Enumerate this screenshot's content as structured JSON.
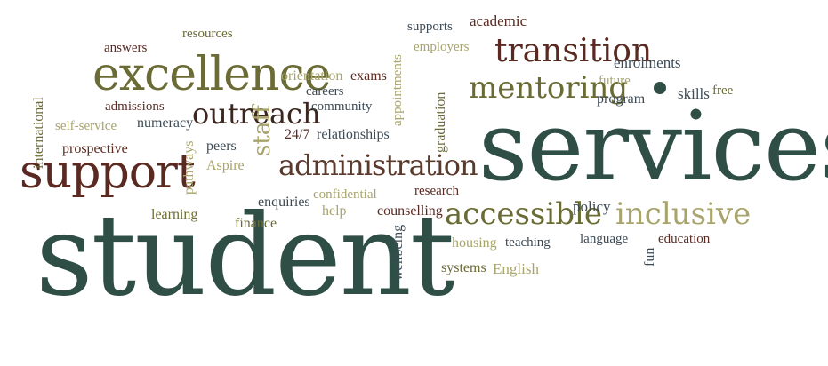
{
  "colors": {
    "dark_green": "#2f4f46",
    "dark_red": "#5a2a22",
    "olive": "#6b6b35",
    "khaki": "#a8a46c",
    "slate": "#3c4a55",
    "brown": "#5b3a2c"
  },
  "words": [
    {
      "text": "student",
      "color": "#2f4f46"
    },
    {
      "text": "services",
      "color": "#2f4f46"
    },
    {
      "text": "excellence",
      "color": "#6b6b35"
    },
    {
      "text": "support",
      "color": "#5a2a22"
    },
    {
      "text": "transition",
      "color": "#5a2a22"
    },
    {
      "text": "mentoring",
      "color": "#6b6b35"
    },
    {
      "text": "outreach",
      "color": "#3c2620"
    },
    {
      "text": "administration",
      "color": "#5b3a2c"
    },
    {
      "text": "accessible",
      "color": "#6b6b35"
    },
    {
      "text": "inclusive",
      "color": "#a8a46c"
    },
    {
      "text": "staff",
      "color": "#a8a46c"
    },
    {
      "text": "resources",
      "color": "#6b6b35"
    },
    {
      "text": "answers",
      "color": "#5a2a22"
    },
    {
      "text": "supports",
      "color": "#3c4a55"
    },
    {
      "text": "academic",
      "color": "#5a2a22"
    },
    {
      "text": "employers",
      "color": "#a8a46c"
    },
    {
      "text": "enrolments",
      "color": "#3c4a55"
    },
    {
      "text": "orientation",
      "color": "#a8a46c"
    },
    {
      "text": "exams",
      "color": "#5a2a22"
    },
    {
      "text": "careers",
      "color": "#3c4a55"
    },
    {
      "text": "community",
      "color": "#3c4a55"
    },
    {
      "text": "future",
      "color": "#a8a46c"
    },
    {
      "text": "program",
      "color": "#3c4a55"
    },
    {
      "text": "skills",
      "color": "#3c4a55"
    },
    {
      "text": "free",
      "color": "#6b6b35"
    },
    {
      "text": "admissions",
      "color": "#5a2a22"
    },
    {
      "text": "self-service",
      "color": "#a8a46c"
    },
    {
      "text": "numeracy",
      "color": "#3c4a55"
    },
    {
      "text": "appointments",
      "color": "#a8a46c"
    },
    {
      "text": "graduation",
      "color": "#6b6b35"
    },
    {
      "text": "international",
      "color": "#6b6b35"
    },
    {
      "text": "prospective",
      "color": "#5a2a22"
    },
    {
      "text": "peers",
      "color": "#3c4a55"
    },
    {
      "text": "24/7",
      "color": "#5a2a22"
    },
    {
      "text": "relationships",
      "color": "#3c4a55"
    },
    {
      "text": "Aspire",
      "color": "#a8a46c"
    },
    {
      "text": "pathways",
      "color": "#a8a46c"
    },
    {
      "text": "confidential",
      "color": "#a8a46c"
    },
    {
      "text": "research",
      "color": "#5a2a22"
    },
    {
      "text": "enquiries",
      "color": "#3c4a55"
    },
    {
      "text": "help",
      "color": "#a8a46c"
    },
    {
      "text": "counselling",
      "color": "#5a2a22"
    },
    {
      "text": "policy",
      "color": "#3c4a55"
    },
    {
      "text": "learning",
      "color": "#6b6b35"
    },
    {
      "text": "finance",
      "color": "#6b6b35"
    },
    {
      "text": "wellbeing",
      "color": "#3c4a55"
    },
    {
      "text": "housing",
      "color": "#a8a46c"
    },
    {
      "text": "teaching",
      "color": "#3c4a55"
    },
    {
      "text": "language",
      "color": "#3c4a55"
    },
    {
      "text": "education",
      "color": "#5a2a22"
    },
    {
      "text": "fun",
      "color": "#3c4a55"
    },
    {
      "text": "systems",
      "color": "#6b6b35"
    },
    {
      "text": "English",
      "color": "#a8a46c"
    }
  ]
}
